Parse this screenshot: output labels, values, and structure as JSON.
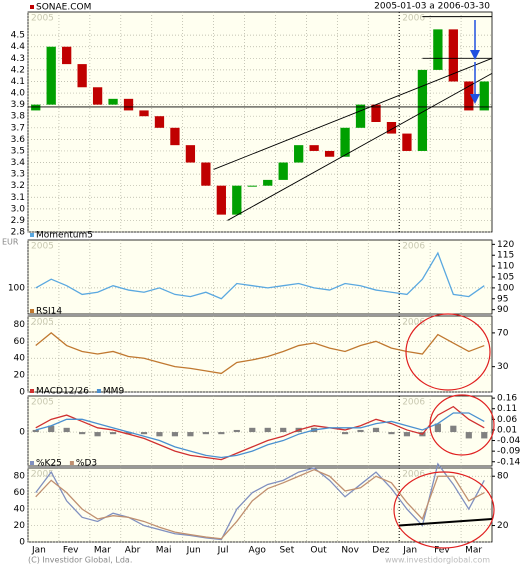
{
  "header": {
    "currency": "EUR",
    "date_range": "2005-01-03 a 2006-03-30",
    "years": [
      "2005",
      "2006"
    ]
  },
  "footer": {
    "copyright": "(C) Investidor Global, Lda.",
    "website": "www.investidorglobal.com"
  },
  "chart_data": [
    {
      "type": "candlestick",
      "xlim": [
        0,
        30
      ],
      "ylim": [
        2.8,
        4.7
      ],
      "yticks": [
        {
          "value": 2.8,
          "label": "2.8"
        },
        {
          "value": 2.9,
          "label": "2.9"
        },
        {
          "value": 3,
          "label": "3.0"
        },
        {
          "value": 3.1,
          "label": "3.1"
        },
        {
          "value": 3.2,
          "label": "3.2"
        },
        {
          "value": 3.3,
          "label": "3.3"
        },
        {
          "value": 3.4,
          "label": "3.4"
        },
        {
          "value": 3.5,
          "label": "3.5"
        },
        {
          "value": 3.6,
          "label": "3.6"
        },
        {
          "value": 3.7,
          "label": "3.7"
        },
        {
          "value": 3.8,
          "label": "3.8"
        },
        {
          "value": 3.9,
          "label": "3.9"
        },
        {
          "value": 4,
          "label": "4.0"
        },
        {
          "value": 4.1,
          "label": "4.1"
        },
        {
          "value": 4.2,
          "label": "4.2"
        },
        {
          "value": 4.3,
          "label": "4.3"
        },
        {
          "value": 4.4,
          "label": "4.4"
        },
        {
          "value": 4.5,
          "label": "4.5"
        }
      ],
      "series": [
        {
          "name": "SONAE.COM",
          "up_color": "#00a000",
          "down_color": "#c00000",
          "open": [
            3.85,
            3.9,
            4.4,
            4.25,
            4.05,
            3.9,
            3.95,
            3.85,
            3.8,
            3.7,
            3.55,
            3.4,
            3.2,
            2.95,
            3.2,
            3.2,
            3.25,
            3.4,
            3.55,
            3.5,
            3.45,
            3.7,
            3.9,
            3.75,
            3.65,
            3.5,
            4.2,
            4.55,
            4.1,
            3.85
          ],
          "close": [
            3.9,
            4.4,
            4.25,
            4.05,
            3.9,
            3.95,
            3.85,
            3.8,
            3.7,
            3.55,
            3.4,
            3.2,
            2.95,
            3.2,
            3.2,
            3.25,
            3.4,
            3.55,
            3.5,
            3.45,
            3.7,
            3.9,
            3.75,
            3.65,
            3.5,
            4.2,
            4.55,
            4.1,
            3.85,
            4.1
          ]
        }
      ],
      "trendlines": [
        {
          "x": [
            12,
            30
          ],
          "y": [
            3.34,
            4.3
          ]
        },
        {
          "x": [
            12.9,
            30
          ],
          "y": [
            2.9,
            4.17
          ]
        },
        {
          "x": [
            0,
            30
          ],
          "y": [
            3.88,
            3.88
          ]
        },
        {
          "x": [
            25.5,
            30
          ],
          "y": [
            4.3,
            4.3
          ]
        },
        {
          "x": [
            25.5,
            30
          ],
          "y": [
            4.66,
            4.66
          ]
        }
      ]
    },
    {
      "type": "line",
      "xlim": [
        0,
        30
      ],
      "ylim": [
        88,
        122
      ],
      "yticks": [
        100
      ],
      "y2lim": [
        88,
        122
      ],
      "y2ticks": [
        90,
        95,
        100,
        105,
        110,
        115,
        120
      ],
      "series": [
        {
          "name": "Momentum5",
          "color": "#5aa8e0",
          "values": [
            100,
            104,
            101,
            97,
            98,
            101,
            99,
            98,
            100,
            97,
            96,
            98,
            95,
            102,
            101,
            100,
            101,
            102,
            100,
            99,
            102,
            101,
            99,
            98,
            97,
            104,
            116,
            97,
            96,
            101
          ]
        }
      ]
    },
    {
      "type": "line",
      "xlim": [
        0,
        30
      ],
      "ylim": [
        0,
        90
      ],
      "yticks": [
        0,
        20,
        40,
        60,
        80
      ],
      "y2lim": [
        0,
        90
      ],
      "y2ticks": [
        30,
        70
      ],
      "series": [
        {
          "name": "RSI14",
          "color": "#c07830",
          "values": [
            55,
            70,
            55,
            48,
            45,
            48,
            42,
            40,
            35,
            30,
            28,
            25,
            22,
            35,
            38,
            42,
            48,
            55,
            58,
            52,
            48,
            55,
            60,
            52,
            48,
            45,
            68,
            58,
            48,
            55
          ]
        }
      ]
    },
    {
      "type": "macd",
      "xlim": [
        0,
        30
      ],
      "ylim": [
        -0.16,
        0.17
      ],
      "yticks": [
        0
      ],
      "y2lim": [
        -0.16,
        0.17
      ],
      "y2ticks": [
        0.16,
        0.11,
        0.06,
        0.01,
        -0.04,
        -0.09,
        -0.14
      ],
      "series": [
        {
          "name": "MACD12/26",
          "color": "#d03030",
          "values": [
            0.02,
            0.06,
            0.08,
            0.05,
            0.02,
            0.01,
            -0.01,
            -0.03,
            -0.06,
            -0.09,
            -0.11,
            -0.12,
            -0.13,
            -0.1,
            -0.07,
            -0.04,
            -0.02,
            0.01,
            0.03,
            0.02,
            0.01,
            0.03,
            0.06,
            0.04,
            0.01,
            -0.01,
            0.08,
            0.12,
            0.06,
            0.02
          ]
        },
        {
          "name": "MM9",
          "color": "#4a90d0",
          "values": [
            0.01,
            0.03,
            0.06,
            0.06,
            0.04,
            0.02,
            0,
            -0.02,
            -0.04,
            -0.07,
            -0.09,
            -0.11,
            -0.12,
            -0.11,
            -0.09,
            -0.06,
            -0.04,
            -0.01,
            0.01,
            0.02,
            0.02,
            0.02,
            0.04,
            0.05,
            0.03,
            0.01,
            0.04,
            0.09,
            0.09,
            0.05
          ]
        }
      ],
      "histogram": {
        "color": "#808080",
        "values": [
          0.01,
          0.03,
          0.02,
          -0.01,
          -0.02,
          -0.01,
          -0.01,
          -0.01,
          -0.02,
          -0.02,
          -0.02,
          -0.01,
          -0.01,
          0.01,
          0.02,
          0.02,
          0.02,
          0.02,
          0.02,
          0,
          -0.01,
          0.01,
          0.02,
          -0.01,
          -0.02,
          -0.02,
          0.04,
          0.03,
          -0.03,
          -0.03
        ]
      }
    },
    {
      "type": "line",
      "xlim": [
        0,
        30
      ],
      "ylim": [
        0,
        90
      ],
      "yticks": [
        0,
        20,
        40,
        60,
        80
      ],
      "y2lim": [
        0,
        90
      ],
      "y2ticks": [
        20,
        80
      ],
      "series": [
        {
          "name": "%K25",
          "color": "#8090c0",
          "values": [
            60,
            85,
            50,
            30,
            25,
            35,
            30,
            20,
            15,
            10,
            8,
            5,
            3,
            40,
            60,
            70,
            75,
            85,
            90,
            75,
            55,
            70,
            85,
            65,
            40,
            20,
            95,
            70,
            40,
            75
          ]
        },
        {
          "name": "%D3",
          "color": "#c09070",
          "values": [
            55,
            75,
            60,
            40,
            28,
            32,
            30,
            25,
            18,
            12,
            9,
            6,
            4,
            25,
            50,
            65,
            72,
            80,
            88,
            80,
            62,
            66,
            80,
            72,
            48,
            28,
            80,
            80,
            50,
            60
          ]
        }
      ],
      "trendlines": [
        {
          "x": [
            24,
            30
          ],
          "y": [
            20,
            28
          ]
        }
      ],
      "xticks": [
        {
          "value": 0,
          "label": "Jan"
        },
        {
          "value": 2,
          "label": "Fev"
        },
        {
          "value": 4,
          "label": "Mar"
        },
        {
          "value": 6,
          "label": "Abr"
        },
        {
          "value": 8,
          "label": "Mai"
        },
        {
          "value": 10,
          "label": "Jun"
        },
        {
          "value": 12,
          "label": "Jul"
        },
        {
          "value": 14,
          "label": "Ago"
        },
        {
          "value": 16,
          "label": "Set"
        },
        {
          "value": 18,
          "label": "Out"
        },
        {
          "value": 20,
          "label": "Nov"
        },
        {
          "value": 22,
          "label": "Dez"
        },
        {
          "value": 24,
          "label": "Jan"
        },
        {
          "value": 26,
          "label": "Fev"
        },
        {
          "value": 28,
          "label": "Mar"
        }
      ]
    }
  ]
}
